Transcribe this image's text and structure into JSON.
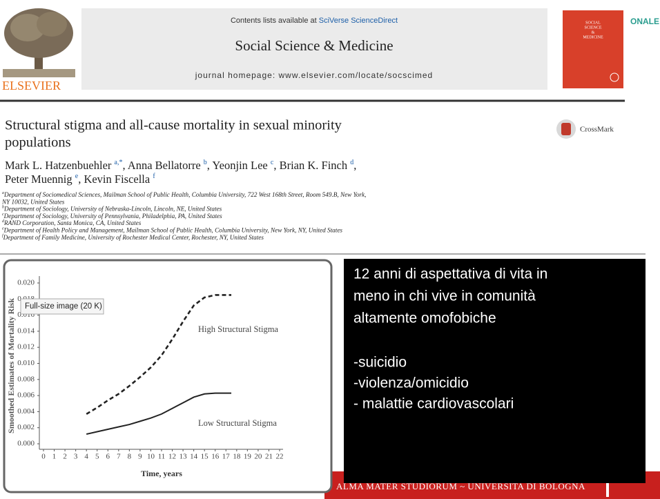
{
  "header": {
    "contents_prefix": "Contents lists available at",
    "contents_link": "SciVerse ScienceDirect",
    "journal": "Social Science & Medicine",
    "homepage": "journal homepage: www.elsevier.com/locate/socscimed",
    "publisher": "ELSEVIER",
    "cover_lines": [
      "SOCIAL",
      "SCIENCE",
      "&",
      "MEDICINE"
    ],
    "side_text": "ONALE"
  },
  "article": {
    "title_lines": [
      "Structural stigma and all-cause mortality in sexual minority",
      "populations"
    ],
    "crossmark": "CrossMark",
    "author_lines": [
      [
        {
          "text": "Mark L. Hatzenbuehler ",
          "sup": "a,*"
        },
        {
          "text": ", Anna Bellatorre ",
          "sup": "b"
        },
        {
          "text": ", Yeonjin Lee ",
          "sup": "c"
        },
        {
          "text": ", Brian K. Finch ",
          "sup": "d"
        },
        {
          "text": ","
        }
      ],
      [
        {
          "text": "Peter Muennig ",
          "sup": "e"
        },
        {
          "text": ", Kevin Fiscella ",
          "sup": "f"
        }
      ]
    ],
    "affiliations": [
      {
        "mark": "a",
        "text": "Department of Sociomedical Sciences, Mailman School of Public Health, Columbia University, 722 West 168th Street, Room 549.B, New York,"
      },
      {
        "mark": "",
        "text": "NY 10032, United States"
      },
      {
        "mark": "b",
        "text": "Department of Sociology, University of Nebraska-Lincoln, Lincoln, NE, United States"
      },
      {
        "mark": "c",
        "text": "Department of Sociology, University of Pennsylvania, Philadelphia, PA, United States"
      },
      {
        "mark": "d",
        "text": "RAND Corporation, Santa Monica, CA, United States"
      },
      {
        "mark": "e",
        "text": "Department of Health Policy and Management, Mailman School of Public Health, Columbia University, New York, NY, United States"
      },
      {
        "mark": "f",
        "text": "Department of Family Medicine, University of Rochester Medical Center, Rochester, NY, United States"
      }
    ]
  },
  "chart_data": {
    "type": "line",
    "xlabel": "Time, years",
    "ylabel": "Smoothed Estimates of Mortality Risk",
    "x": [
      4,
      5,
      6,
      7,
      8,
      9,
      10,
      11,
      12,
      13,
      14,
      15,
      16,
      17,
      17.5
    ],
    "series": [
      {
        "name": "High Structural Stigma",
        "color": "#222222",
        "dashed": true,
        "values": [
          0.0037,
          0.0045,
          0.0054,
          0.0062,
          0.0072,
          0.0083,
          0.0095,
          0.011,
          0.013,
          0.0152,
          0.0172,
          0.0182,
          0.0185,
          0.0185,
          0.0185
        ]
      },
      {
        "name": "Low Structural Stigma",
        "color": "#222222",
        "dashed": false,
        "values": [
          0.0012,
          0.0015,
          0.0018,
          0.0021,
          0.0024,
          0.0028,
          0.0032,
          0.0037,
          0.0044,
          0.0051,
          0.0058,
          0.0062,
          0.0063,
          0.0063,
          0.0063
        ]
      }
    ],
    "xlim": [
      0,
      22
    ],
    "xticks": [
      0,
      1,
      2,
      3,
      4,
      5,
      6,
      7,
      8,
      9,
      10,
      11,
      12,
      13,
      14,
      15,
      16,
      17,
      18,
      19,
      20,
      21,
      22
    ],
    "ylim": [
      0,
      0.02
    ],
    "yticks": [
      {
        "value": 0,
        "label": "0.000"
      },
      {
        "value": 0.002,
        "label": "0.002"
      },
      {
        "value": 0.004,
        "label": "0.004"
      },
      {
        "value": 0.006,
        "label": "0.006"
      },
      {
        "value": 0.008,
        "label": "0.008"
      },
      {
        "value": 0.01,
        "label": "0.010"
      },
      {
        "value": 0.012,
        "label": "0.012"
      },
      {
        "value": 0.014,
        "label": "0.014"
      },
      {
        "value": 0.016,
        "label": "0.016"
      },
      {
        "value": 0.018,
        "label": "0.018"
      },
      {
        "value": 0.02,
        "label": "0.020"
      }
    ],
    "grid": false
  },
  "tooltip": "Full-size image (20 K)",
  "callout": {
    "lines": [
      "12 anni di aspettativa di vita in",
      "meno in chi vive in comunità",
      "altamente omofobiche"
    ],
    "bullets": [
      "-suicidio",
      "-violenza/omicidio",
      "- malattie cardiovascolari"
    ]
  },
  "footer": "ALMA MATER STUDIORUM ~ UNIVERSITA DI BOLOGNA"
}
